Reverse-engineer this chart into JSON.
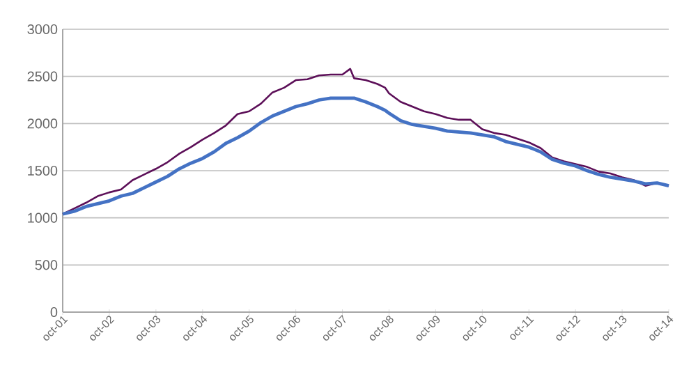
{
  "chart_data": {
    "type": "line",
    "x": [
      "2001-10",
      "2002-01",
      "2002-04",
      "2002-07",
      "2002-10",
      "2003-01",
      "2003-04",
      "2003-07",
      "2003-10",
      "2004-01",
      "2004-04",
      "2004-07",
      "2004-10",
      "2005-01",
      "2005-04",
      "2005-07",
      "2005-10",
      "2006-01",
      "2006-04",
      "2006-07",
      "2006-10",
      "2007-01",
      "2007-04",
      "2007-07",
      "2007-10",
      "2007-12",
      "2008-01",
      "2008-04",
      "2008-07",
      "2008-09",
      "2008-10",
      "2009-01",
      "2009-04",
      "2009-07",
      "2009-10",
      "2010-01",
      "2010-04",
      "2010-07",
      "2010-10",
      "2011-01",
      "2011-04",
      "2011-07",
      "2011-10",
      "2012-01",
      "2012-04",
      "2012-07",
      "2012-10",
      "2013-01",
      "2013-04",
      "2013-07",
      "2013-10",
      "2014-01",
      "2014-04",
      "2014-07",
      "2014-10"
    ],
    "series": [
      {
        "color": "#5c0f58",
        "values": [
          1040,
          1100,
          1160,
          1230,
          1270,
          1300,
          1400,
          1460,
          1520,
          1590,
          1680,
          1750,
          1830,
          1900,
          1980,
          2100,
          2130,
          2210,
          2330,
          2380,
          2460,
          2470,
          2510,
          2520,
          2520,
          2580,
          2480,
          2460,
          2420,
          2380,
          2320,
          2230,
          2180,
          2130,
          2100,
          2060,
          2040,
          2040,
          1940,
          1900,
          1880,
          1840,
          1800,
          1740,
          1640,
          1600,
          1570,
          1540,
          1490,
          1470,
          1430,
          1400,
          1340,
          1370,
          1340
        ]
      },
      {
        "color": "#4472c4",
        "values": [
          1040,
          1070,
          1120,
          1150,
          1180,
          1230,
          1260,
          1320,
          1380,
          1440,
          1520,
          1580,
          1630,
          1700,
          1790,
          1850,
          1920,
          2010,
          2080,
          2130,
          2180,
          2210,
          2250,
          2270,
          2270,
          2270,
          2270,
          2230,
          2180,
          2140,
          2110,
          2030,
          1990,
          1970,
          1950,
          1920,
          1910,
          1900,
          1880,
          1860,
          1810,
          1780,
          1750,
          1700,
          1620,
          1580,
          1550,
          1500,
          1460,
          1430,
          1410,
          1390,
          1360,
          1370,
          1340
        ]
      }
    ],
    "xlim": [
      "2001-10",
      "2014-10"
    ],
    "xticks": [
      {
        "value": "2001-10",
        "label": "oct-01"
      },
      {
        "value": "2002-10",
        "label": "oct-02"
      },
      {
        "value": "2003-10",
        "label": "oct-03"
      },
      {
        "value": "2004-10",
        "label": "oct-04"
      },
      {
        "value": "2005-10",
        "label": "oct-05"
      },
      {
        "value": "2006-10",
        "label": "oct-06"
      },
      {
        "value": "2007-10",
        "label": "oct-07"
      },
      {
        "value": "2008-10",
        "label": "oct-08"
      },
      {
        "value": "2009-10",
        "label": "oct-09"
      },
      {
        "value": "2010-10",
        "label": "oct-10"
      },
      {
        "value": "2011-10",
        "label": "oct-11"
      },
      {
        "value": "2012-10",
        "label": "oct-12"
      },
      {
        "value": "2013-10",
        "label": "oct-13"
      },
      {
        "value": "2014-10",
        "label": "oct-14"
      }
    ],
    "ylim": [
      0,
      3000
    ],
    "yticks": [
      0,
      500,
      1000,
      1500,
      2000,
      2500,
      3000
    ],
    "grid": "y"
  }
}
